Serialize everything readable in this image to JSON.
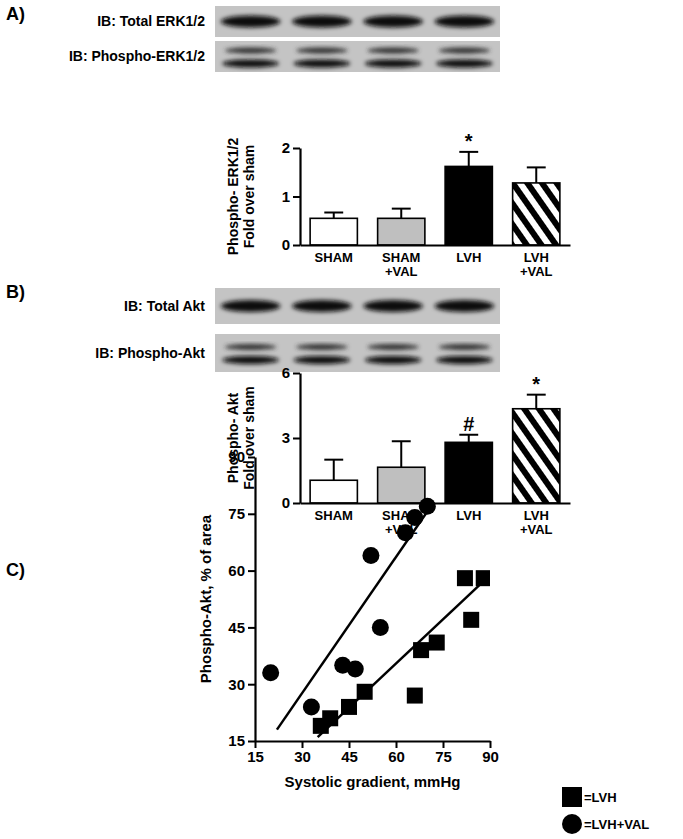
{
  "chart_data": [
    {
      "type": "bar",
      "panel": "A)",
      "blots": [
        "IB: Total ERK1/2",
        "IB: Phospho-ERK1/2"
      ],
      "ylabel": [
        "Phospho- ERK1/2",
        "Fold over sham"
      ],
      "categories": [
        "SHAM",
        "SHAM +VAL",
        "LVH",
        "LVH +VAL"
      ],
      "values": [
        0.55,
        0.55,
        1.62,
        1.28
      ],
      "errors": [
        0.12,
        0.2,
        0.3,
        0.32
      ],
      "colors": [
        "#ffffff",
        "#bfbfbf",
        "#000000",
        "hatch"
      ],
      "ylim": [
        0,
        2
      ],
      "yticks": [
        0,
        1,
        2
      ],
      "annotations": [
        {
          "category": "LVH",
          "text": "*"
        }
      ]
    },
    {
      "type": "bar",
      "panel": "B)",
      "blots": [
        "IB: Total Akt",
        "IB: Phospho-Akt"
      ],
      "ylabel": [
        "Phospho- Akt",
        "Fold over sham"
      ],
      "categories": [
        "SHAM",
        "SHAM +VAL",
        "LVH",
        "LVH +VAL"
      ],
      "values": [
        1.05,
        1.65,
        2.8,
        4.35
      ],
      "errors": [
        0.95,
        1.2,
        0.35,
        0.65
      ],
      "colors": [
        "#ffffff",
        "#bfbfbf",
        "#000000",
        "hatch"
      ],
      "ylim": [
        0,
        6
      ],
      "yticks": [
        0,
        3,
        6
      ],
      "annotations": [
        {
          "category": "LVH",
          "text": "#"
        },
        {
          "category": "LVH +VAL",
          "text": "*"
        }
      ]
    },
    {
      "type": "scatter",
      "panel": "C)",
      "xlabel": "Systolic gradient, mmHg",
      "ylabel": "Phospho-Akt, % of area",
      "xlim": [
        15,
        90
      ],
      "xticks": [
        15,
        30,
        45,
        60,
        75,
        90
      ],
      "ylim": [
        15,
        90
      ],
      "yticks": [
        15,
        30,
        45,
        60,
        75,
        90
      ],
      "legend": "bottom-right",
      "series": [
        {
          "name": "=LVH",
          "marker": "square",
          "color": "#000000",
          "x": [
            36,
            39,
            45,
            50,
            66,
            68,
            73,
            82,
            84,
            88
          ],
          "values": [
            19,
            21,
            24,
            28,
            27,
            39,
            41,
            58,
            47,
            58
          ],
          "fit_x": [
            35,
            89
          ],
          "fit_y": [
            16,
            58
          ]
        },
        {
          "name": "=LVH+VAL",
          "marker": "circle",
          "color": "#000000",
          "x": [
            20,
            33,
            43,
            47,
            52,
            55,
            63,
            66,
            70
          ],
          "values": [
            33,
            24,
            35,
            34,
            64,
            45,
            70,
            74,
            77
          ],
          "fit_x": [
            22,
            72
          ],
          "fit_y": [
            18,
            78
          ]
        }
      ]
    }
  ]
}
